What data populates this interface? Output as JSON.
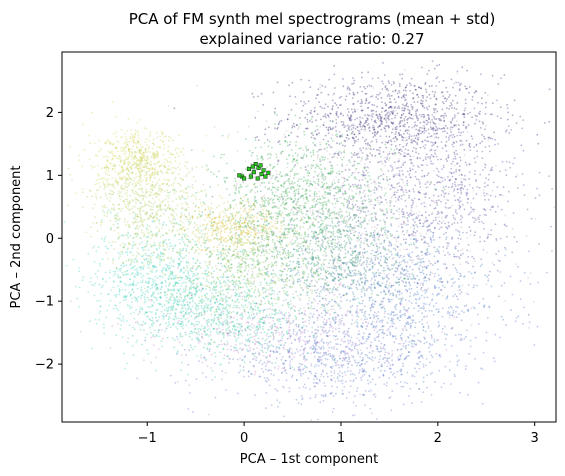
{
  "chart_data": {
    "type": "scatter",
    "title": "PCA of FM synth mel spectrograms (mean + std)",
    "subtitle": "explained variance ratio: 0.27",
    "xlabel": "PCA – 1st component",
    "ylabel": "PCA – 2nd component",
    "xlim": [
      -1.88,
      3.22
    ],
    "ylim": [
      -2.92,
      2.96
    ],
    "x_ticks": [
      -1,
      0,
      1,
      2,
      3
    ],
    "x_tick_labels": [
      "−1",
      "0",
      "1",
      "2",
      "3"
    ],
    "y_ticks": [
      -2,
      -1,
      0,
      1,
      2
    ],
    "y_tick_labels": [
      "−2",
      "−1",
      "0",
      "1",
      "2"
    ],
    "grid": false,
    "legend": "none",
    "point_cloud": {
      "description_shape": "spiral",
      "regions": [
        {
          "cx": 1.5,
          "cy": 1.9,
          "sx": 0.55,
          "sy": 0.35,
          "color": "#2a1f6e",
          "n": 900
        },
        {
          "cx": 1.9,
          "cy": 0.8,
          "sx": 0.5,
          "sy": 0.7,
          "color": "#4f3f9c",
          "n": 900
        },
        {
          "cx": 1.6,
          "cy": -0.9,
          "sx": 0.55,
          "sy": 0.6,
          "color": "#3f6fc2",
          "n": 900
        },
        {
          "cx": 0.9,
          "cy": -1.9,
          "sx": 0.6,
          "sy": 0.35,
          "color": "#5a72c9",
          "n": 800
        },
        {
          "cx": 0.6,
          "cy": 0.6,
          "sx": 0.45,
          "sy": 0.5,
          "color": "#2fa84a",
          "n": 1000
        },
        {
          "cx": 0.9,
          "cy": -0.3,
          "sx": 0.4,
          "sy": 0.45,
          "color": "#2b8a7a",
          "n": 700
        },
        {
          "cx": 0.0,
          "cy": -0.4,
          "sx": 0.45,
          "sy": 0.4,
          "color": "#7fc45a",
          "n": 700
        },
        {
          "cx": -0.25,
          "cy": -1.2,
          "sx": 0.45,
          "sy": 0.35,
          "color": "#2fc6a0",
          "n": 800
        },
        {
          "cx": -0.9,
          "cy": -0.6,
          "sx": 0.35,
          "sy": 0.45,
          "color": "#3ad0c0",
          "n": 700
        },
        {
          "cx": -1.0,
          "cy": 0.5,
          "sx": 0.3,
          "sy": 0.45,
          "color": "#a9cf5a",
          "n": 700
        },
        {
          "cx": -1.1,
          "cy": 1.2,
          "sx": 0.22,
          "sy": 0.25,
          "color": "#d2d24a",
          "n": 500
        },
        {
          "cx": -0.1,
          "cy": 0.2,
          "sx": 0.25,
          "sy": 0.2,
          "color": "#d8c030",
          "n": 400
        },
        {
          "cx": 1.2,
          "cy": 0.3,
          "sx": 0.7,
          "sy": 0.9,
          "color": "#b9a7b8",
          "n": 700
        },
        {
          "cx": 0.4,
          "cy": -1.5,
          "sx": 0.7,
          "sy": 0.35,
          "color": "#c87fc8",
          "n": 350
        }
      ],
      "highlight_points": [
        [
          0.12,
          1.18
        ],
        [
          0.15,
          1.12
        ],
        [
          0.1,
          1.05
        ],
        [
          0.18,
          1.02
        ],
        [
          0.07,
          0.98
        ],
        [
          0.14,
          0.95
        ],
        [
          0.2,
          1.08
        ],
        [
          0.05,
          1.1
        ],
        [
          0.22,
          0.98
        ],
        [
          0.09,
          1.14
        ],
        [
          -0.02,
          0.98
        ],
        [
          0.0,
          0.95
        ],
        [
          -0.05,
          1.0
        ],
        [
          0.25,
          1.04
        ],
        [
          0.17,
          1.16
        ]
      ],
      "highlight_color": "#29c41f"
    }
  }
}
